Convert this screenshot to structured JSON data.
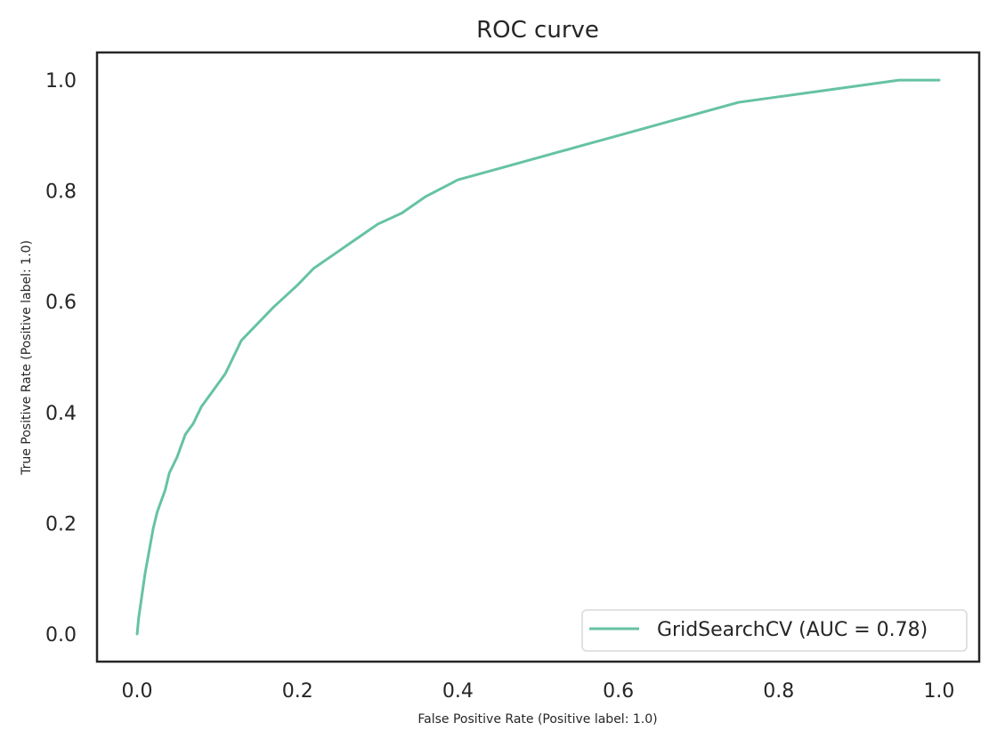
{
  "chart_data": {
    "type": "line",
    "title": "ROC curve",
    "xlabel": "False Positive Rate (Positive label: 1.0)",
    "ylabel": "True Positive Rate (Positive label: 1.0)",
    "xlim": [
      -0.05,
      1.05
    ],
    "ylim": [
      -0.05,
      1.05
    ],
    "xticks": [
      "0.0",
      "0.2",
      "0.4",
      "0.6",
      "0.8",
      "1.0"
    ],
    "yticks": [
      "0.0",
      "0.2",
      "0.4",
      "0.6",
      "0.8",
      "1.0"
    ],
    "grid": false,
    "legend_position": "lower-right",
    "legend": [
      "GridSearchCV (AUC = 0.78)"
    ],
    "series": [
      {
        "name": "GridSearchCV (AUC = 0.78)",
        "color": "#66c2a5",
        "x": [
          0.0,
          0.002,
          0.005,
          0.01,
          0.015,
          0.02,
          0.025,
          0.03,
          0.035,
          0.04,
          0.05,
          0.06,
          0.07,
          0.08,
          0.09,
          0.1,
          0.11,
          0.12,
          0.13,
          0.15,
          0.17,
          0.2,
          0.22,
          0.25,
          0.28,
          0.3,
          0.33,
          0.36,
          0.4,
          0.45,
          0.5,
          0.55,
          0.6,
          0.65,
          0.7,
          0.75,
          0.8,
          0.85,
          0.9,
          0.95,
          1.0
        ],
        "y": [
          0.0,
          0.03,
          0.06,
          0.11,
          0.15,
          0.19,
          0.22,
          0.24,
          0.26,
          0.29,
          0.32,
          0.36,
          0.38,
          0.41,
          0.43,
          0.45,
          0.47,
          0.5,
          0.53,
          0.56,
          0.59,
          0.63,
          0.66,
          0.69,
          0.72,
          0.74,
          0.76,
          0.79,
          0.82,
          0.84,
          0.86,
          0.88,
          0.9,
          0.92,
          0.94,
          0.96,
          0.97,
          0.98,
          0.99,
          1.0,
          1.0
        ]
      }
    ]
  }
}
